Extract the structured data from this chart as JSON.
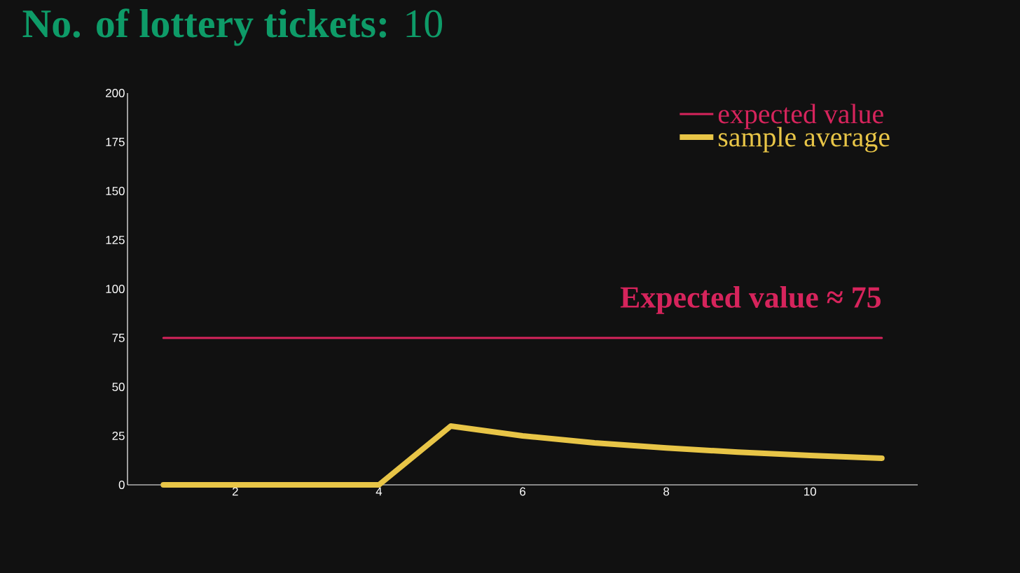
{
  "chart_data": {
    "type": "line",
    "title": "**No. of lottery tickets:** 10",
    "xlim": [
      0.5,
      11.5
    ],
    "xticks": [
      2,
      4,
      6,
      8,
      10
    ],
    "ylim": [
      0,
      200
    ],
    "yticks": [
      0,
      25,
      50,
      75,
      100,
      125,
      150,
      175,
      200
    ],
    "series": [
      {
        "name": "expected value",
        "color": "#d6245c",
        "x": [
          1,
          11
        ],
        "values": [
          75,
          75
        ]
      },
      {
        "name": "sample average",
        "color": "#e8c547",
        "x": [
          1,
          2,
          3,
          4,
          5,
          6,
          7,
          8,
          9,
          10,
          11
        ],
        "values": [
          0,
          0,
          0,
          0,
          30,
          25,
          21.4,
          18.8,
          16.7,
          15,
          13.6
        ]
      }
    ],
    "annotations": [
      {
        "text": "Expected value ≈ 75",
        "x": 11,
        "y": 75
      }
    ],
    "legend": "top right"
  }
}
